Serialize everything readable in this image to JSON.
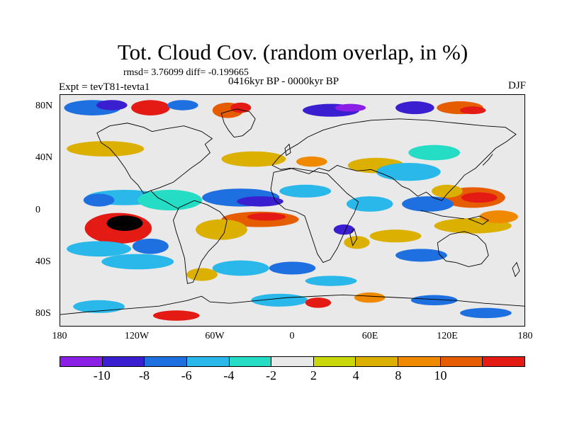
{
  "title": "Tot. Cloud Cov. (random overlap, in %)",
  "stats": "rmsd= 3.76099 diff= -0.199665",
  "period": "0416kyr BP - 0000kyr BP",
  "experiment": "Expt = tevT81-tevta1",
  "season": "DJF",
  "lat_labels": [
    "80N",
    "40N",
    "0",
    "40S",
    "80S"
  ],
  "lon_labels": [
    "180",
    "120W",
    "60W",
    "0",
    "60E",
    "120E",
    "180"
  ],
  "colorbar": {
    "colors": [
      "#8b1fe6",
      "#3a1fd0",
      "#1e6fe0",
      "#2ab8ea",
      "#25dcc4",
      "#e9e9e9",
      "#c8d80a",
      "#dcb000",
      "#ef8a00",
      "#e65c00",
      "#e41a14"
    ],
    "labels": [
      "-10",
      "-8",
      "-6",
      "-4",
      "-2",
      "2",
      "4",
      "8",
      "10"
    ]
  },
  "map": {
    "lon_range": [
      -180,
      180
    ],
    "lat_range": [
      -90,
      90
    ],
    "background_value_color": "#e9e9e9",
    "anomalies": [
      {
        "lon": -135,
        "lat": -14,
        "rx": 26,
        "ry": 12,
        "level": 10
      },
      {
        "lon": -130,
        "lat": -10,
        "rx": 14,
        "ry": 6,
        "level": 11
      },
      {
        "lon": -130,
        "lat": 10,
        "rx": 30,
        "ry": 6,
        "level": 3
      },
      {
        "lon": -150,
        "lat": 8,
        "rx": 12,
        "ry": 5,
        "level": 2
      },
      {
        "lon": -95,
        "lat": 8,
        "rx": 25,
        "ry": 8,
        "level": 4
      },
      {
        "lon": -150,
        "lat": -30,
        "rx": 25,
        "ry": 6,
        "level": 3
      },
      {
        "lon": -110,
        "lat": -28,
        "rx": 14,
        "ry": 6,
        "level": 2
      },
      {
        "lon": -155,
        "lat": 80,
        "rx": 22,
        "ry": 6,
        "level": 2
      },
      {
        "lon": -140,
        "lat": 82,
        "rx": 12,
        "ry": 4,
        "level": 1
      },
      {
        "lon": -110,
        "lat": 80,
        "rx": 15,
        "ry": 6,
        "level": 10
      },
      {
        "lon": -85,
        "lat": 82,
        "rx": 12,
        "ry": 4,
        "level": 2
      },
      {
        "lon": -50,
        "lat": 78,
        "rx": 12,
        "ry": 6,
        "level": 9
      },
      {
        "lon": -40,
        "lat": 80,
        "rx": 8,
        "ry": 4,
        "level": 10
      },
      {
        "lon": 30,
        "lat": 78,
        "rx": 22,
        "ry": 5,
        "level": 1
      },
      {
        "lon": 45,
        "lat": 80,
        "rx": 12,
        "ry": 3,
        "level": 0
      },
      {
        "lon": 95,
        "lat": 80,
        "rx": 15,
        "ry": 5,
        "level": 1
      },
      {
        "lon": 130,
        "lat": 80,
        "rx": 18,
        "ry": 5,
        "level": 9
      },
      {
        "lon": 140,
        "lat": 78,
        "rx": 10,
        "ry": 3,
        "level": 10
      },
      {
        "lon": -145,
        "lat": 48,
        "rx": 30,
        "ry": 6,
        "level": 7
      },
      {
        "lon": -30,
        "lat": 40,
        "rx": 25,
        "ry": 6,
        "level": 7
      },
      {
        "lon": 15,
        "lat": 38,
        "rx": 12,
        "ry": 4,
        "level": 8
      },
      {
        "lon": 65,
        "lat": 35,
        "rx": 22,
        "ry": 6,
        "level": 7
      },
      {
        "lon": 90,
        "lat": 30,
        "rx": 25,
        "ry": 7,
        "level": 3
      },
      {
        "lon": 110,
        "lat": 45,
        "rx": 20,
        "ry": 6,
        "level": 4
      },
      {
        "lon": -40,
        "lat": 10,
        "rx": 30,
        "ry": 7,
        "level": 2
      },
      {
        "lon": -25,
        "lat": 7,
        "rx": 18,
        "ry": 4,
        "level": 1
      },
      {
        "lon": -25,
        "lat": -7,
        "rx": 30,
        "ry": 6,
        "level": 9
      },
      {
        "lon": -20,
        "lat": -5,
        "rx": 15,
        "ry": 3,
        "level": 10
      },
      {
        "lon": -55,
        "lat": -15,
        "rx": 20,
        "ry": 8,
        "level": 7
      },
      {
        "lon": 10,
        "lat": 15,
        "rx": 20,
        "ry": 5,
        "level": 3
      },
      {
        "lon": 60,
        "lat": 5,
        "rx": 18,
        "ry": 6,
        "level": 3
      },
      {
        "lon": 40,
        "lat": -15,
        "rx": 8,
        "ry": 4,
        "level": 1
      },
      {
        "lon": 50,
        "lat": -25,
        "rx": 10,
        "ry": 5,
        "level": 7
      },
      {
        "lon": 140,
        "lat": 10,
        "rx": 25,
        "ry": 8,
        "level": 9
      },
      {
        "lon": 145,
        "lat": 10,
        "rx": 14,
        "ry": 4,
        "level": 10
      },
      {
        "lon": 120,
        "lat": 15,
        "rx": 12,
        "ry": 5,
        "level": 7
      },
      {
        "lon": 105,
        "lat": 5,
        "rx": 20,
        "ry": 6,
        "level": 2
      },
      {
        "lon": 140,
        "lat": -12,
        "rx": 30,
        "ry": 6,
        "level": 7
      },
      {
        "lon": 160,
        "lat": -5,
        "rx": 15,
        "ry": 5,
        "level": 8
      },
      {
        "lon": 80,
        "lat": -20,
        "rx": 20,
        "ry": 5,
        "level": 7
      },
      {
        "lon": 100,
        "lat": -35,
        "rx": 20,
        "ry": 5,
        "level": 2
      },
      {
        "lon": -120,
        "lat": -40,
        "rx": 28,
        "ry": 6,
        "level": 3
      },
      {
        "lon": -40,
        "lat": -45,
        "rx": 22,
        "ry": 6,
        "level": 3
      },
      {
        "lon": -70,
        "lat": -50,
        "rx": 12,
        "ry": 5,
        "level": 7
      },
      {
        "lon": 0,
        "lat": -45,
        "rx": 18,
        "ry": 5,
        "level": 2
      },
      {
        "lon": 30,
        "lat": -55,
        "rx": 20,
        "ry": 4,
        "level": 3
      },
      {
        "lon": -10,
        "lat": -70,
        "rx": 22,
        "ry": 5,
        "level": 3
      },
      {
        "lon": 20,
        "lat": -72,
        "rx": 10,
        "ry": 4,
        "level": 10
      },
      {
        "lon": 60,
        "lat": -68,
        "rx": 12,
        "ry": 4,
        "level": 8
      },
      {
        "lon": 110,
        "lat": -70,
        "rx": 18,
        "ry": 4,
        "level": 2
      },
      {
        "lon": -90,
        "lat": -82,
        "rx": 18,
        "ry": 4,
        "level": 10
      },
      {
        "lon": -150,
        "lat": -75,
        "rx": 20,
        "ry": 5,
        "level": 3
      },
      {
        "lon": 150,
        "lat": -80,
        "rx": 20,
        "ry": 4,
        "level": 2
      }
    ]
  }
}
